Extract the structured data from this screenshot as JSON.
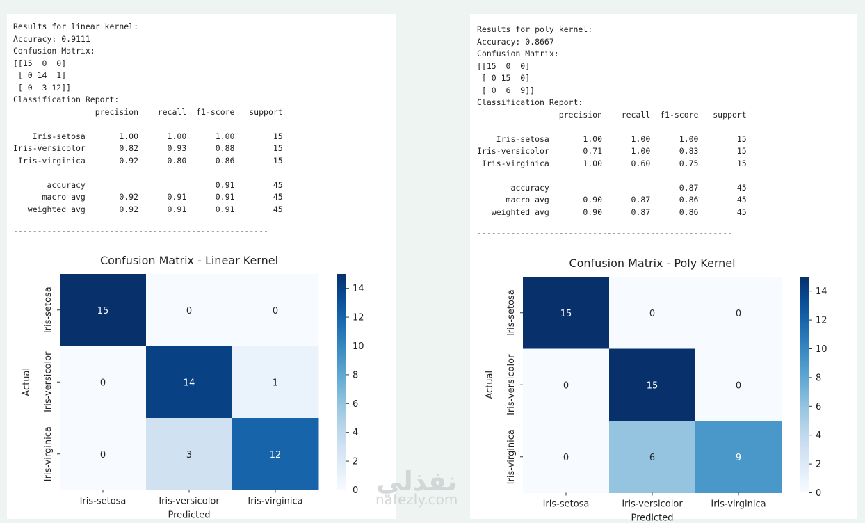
{
  "report_left": {
    "text": "Results for linear kernel:\nAccuracy: 0.9111\nConfusion Matrix:\n[[15  0  0]\n [ 0 14  1]\n [ 0  3 12]]\nClassification Report:\n                 precision    recall  f1-score   support\n\n    Iris-setosa       1.00      1.00      1.00        15\nIris-versicolor       0.82      0.93      0.88        15\n Iris-virginica       0.92      0.80      0.86        15\n\n       accuracy                           0.91        45\n      macro avg       0.92      0.91      0.91        45\n   weighted avg       0.92      0.91      0.91        45",
    "separator": "-----------------------------------------------------"
  },
  "report_right": {
    "text": "Results for poly kernel:\nAccuracy: 0.8667\nConfusion Matrix:\n[[15  0  0]\n [ 0 15  0]\n [ 0  6  9]]\nClassification Report:\n                 precision    recall  f1-score   support\n\n    Iris-setosa       1.00      1.00      1.00        15\nIris-versicolor       0.71      1.00      0.83        15\n Iris-virginica       1.00      0.60      0.75        15\n\n       accuracy                           0.87        45\n      macro avg       0.90      0.87      0.86        45\n   weighted avg       0.90      0.87      0.86        45",
    "separator": "-----------------------------------------------------"
  },
  "chart_data": [
    {
      "type": "heatmap",
      "title": "Confusion Matrix - Linear Kernel",
      "xlabel": "Predicted",
      "ylabel": "Actual",
      "x_categories": [
        "Iris-setosa",
        "Iris-versicolor",
        "Iris-virginica"
      ],
      "y_categories": [
        "Iris-setosa",
        "Iris-versicolor",
        "Iris-virginica"
      ],
      "values": [
        [
          15,
          0,
          0
        ],
        [
          0,
          14,
          1
        ],
        [
          0,
          3,
          12
        ]
      ],
      "colormap": "Blues",
      "colorbar_range": [
        0,
        15
      ],
      "colorbar_ticks": [
        0,
        2,
        4,
        6,
        8,
        10,
        12,
        14
      ]
    },
    {
      "type": "heatmap",
      "title": "Confusion Matrix - Poly Kernel",
      "xlabel": "Predicted",
      "ylabel": "Actual",
      "x_categories": [
        "Iris-setosa",
        "Iris-versicolor",
        "Iris-virginica"
      ],
      "y_categories": [
        "Iris-setosa",
        "Iris-versicolor",
        "Iris-virginica"
      ],
      "values": [
        [
          15,
          0,
          0
        ],
        [
          0,
          15,
          0
        ],
        [
          0,
          6,
          9
        ]
      ],
      "colormap": "Blues",
      "colorbar_range": [
        0,
        15
      ],
      "colorbar_ticks": [
        0,
        2,
        4,
        6,
        8,
        10,
        12,
        14
      ]
    }
  ],
  "watermark": {
    "arabic": "نفذلي",
    "latin": "nafezly.com"
  }
}
